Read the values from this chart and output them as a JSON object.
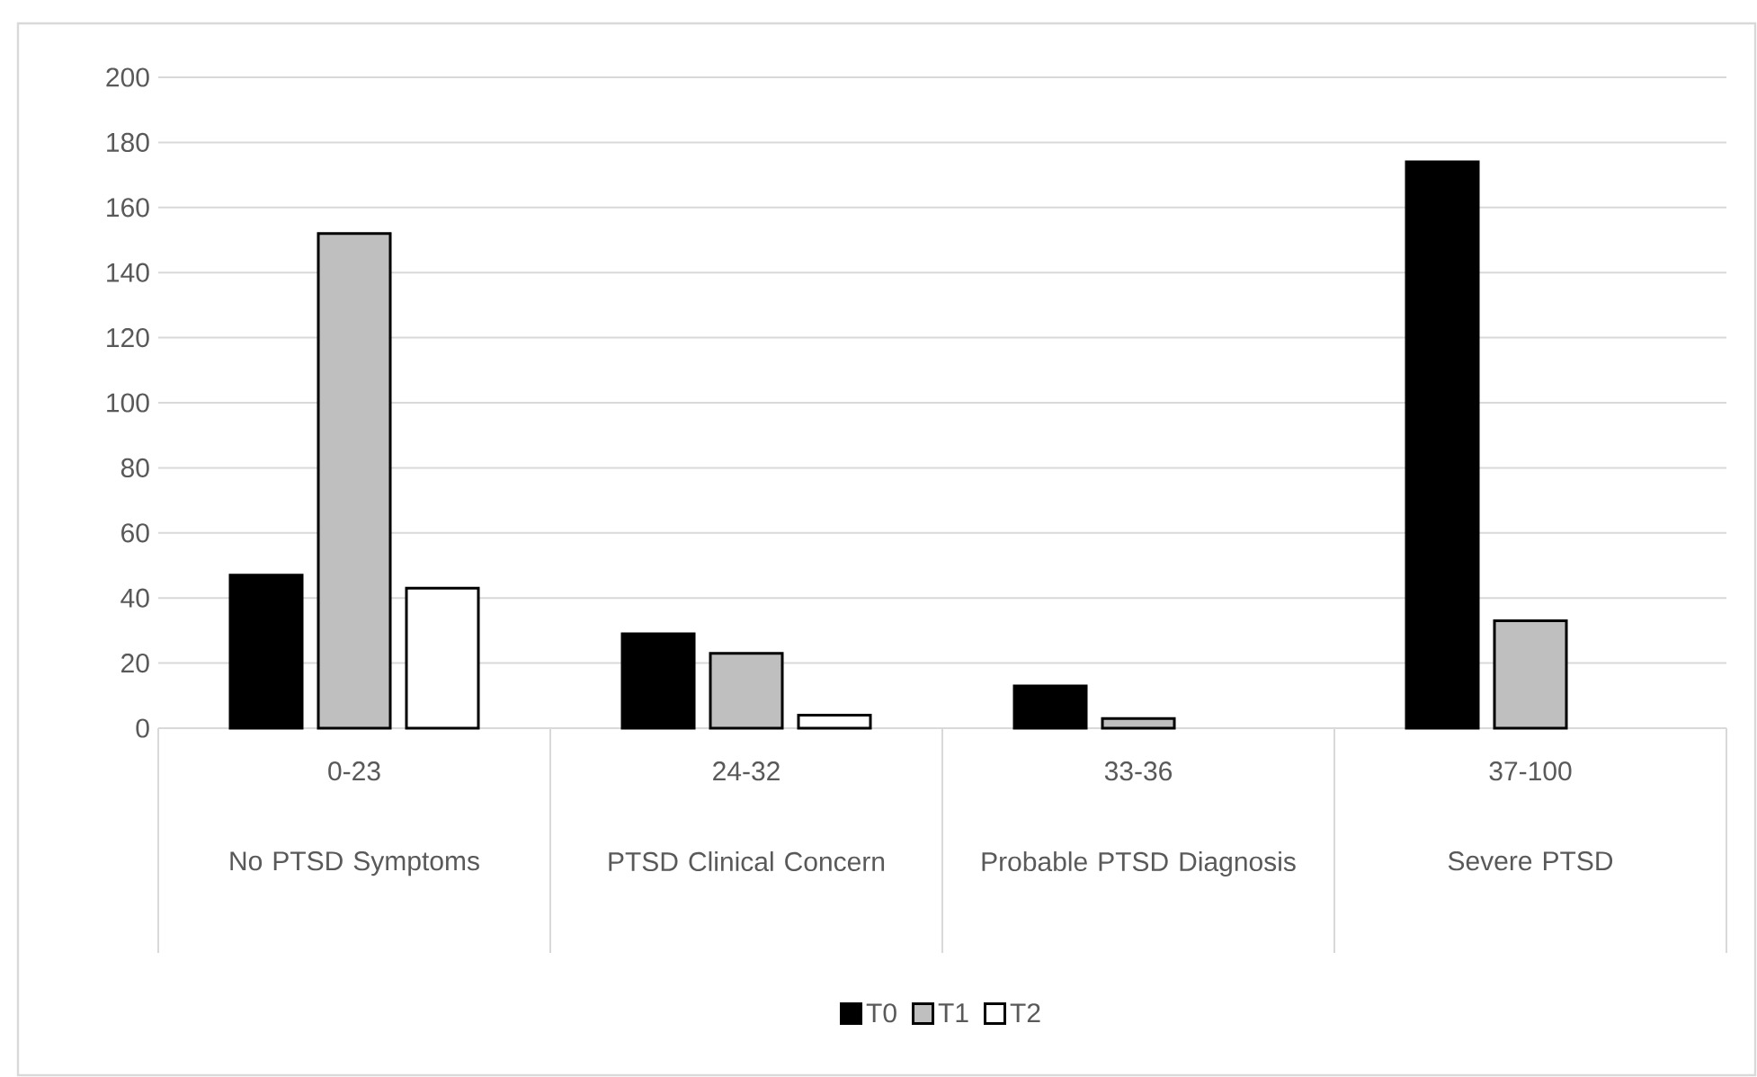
{
  "chart_data": {
    "type": "bar",
    "categories": [
      "0-23",
      "24-32",
      "33-36",
      "37-100"
    ],
    "annotations": [
      "No PTSD Symptoms",
      "PTSD Clinical Concern",
      "Probable PTSD Diagnosis",
      "Severe PTSD"
    ],
    "series": [
      {
        "name": "T0",
        "color": "#000000",
        "values": [
          47,
          29,
          13,
          174
        ]
      },
      {
        "name": "T1",
        "color": "#bfbfbf",
        "values": [
          152,
          23,
          3,
          33
        ]
      },
      {
        "name": "T2",
        "color": "#ffffff",
        "values": [
          43,
          4,
          null,
          null
        ]
      }
    ],
    "ylim": [
      0,
      200
    ],
    "yticks": [
      0,
      20,
      40,
      60,
      80,
      100,
      120,
      140,
      160,
      180,
      200
    ],
    "grid": "y",
    "legend": "bottom"
  }
}
